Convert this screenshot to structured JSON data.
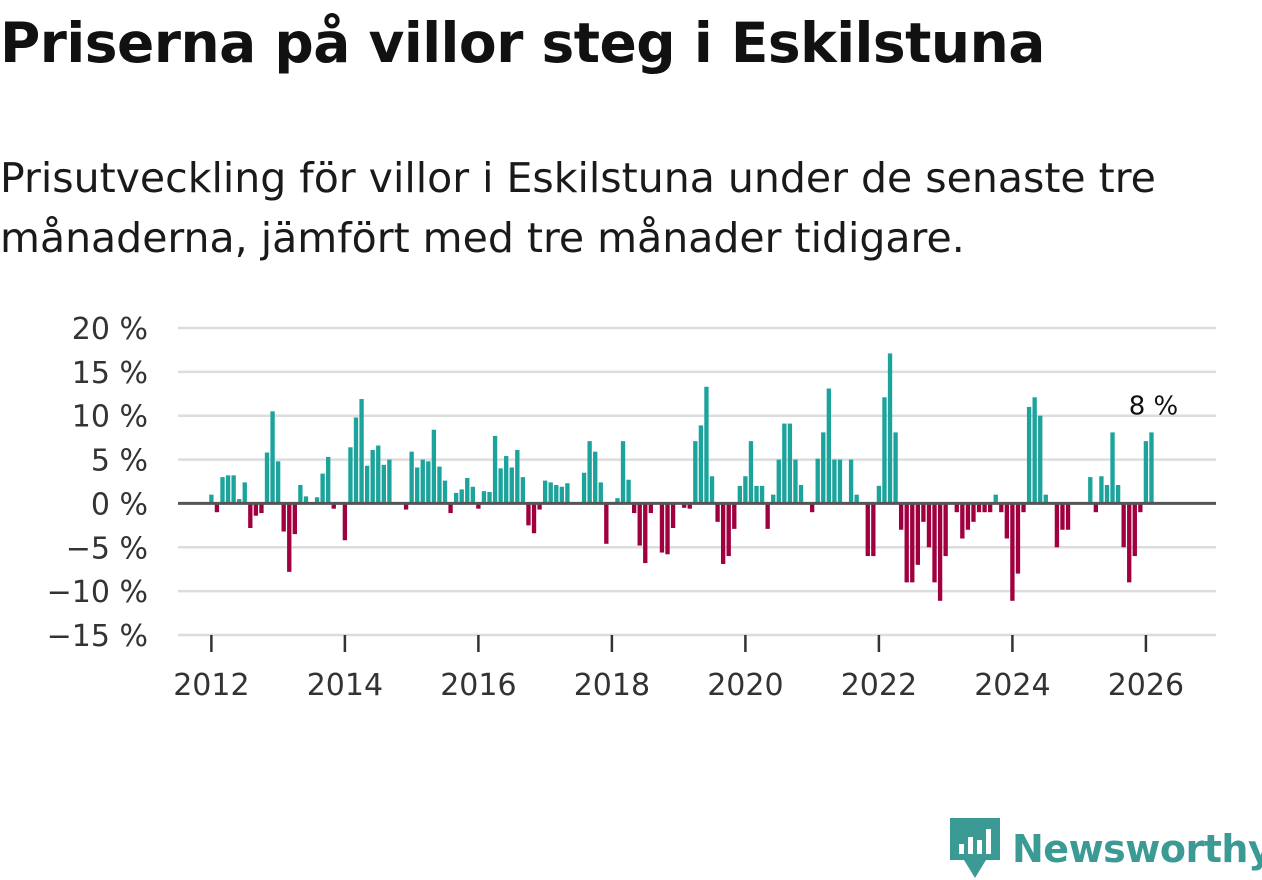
{
  "title": "Priserna på villor steg i Eskilstuna",
  "subtitle": "Prisutveckling för villor i Eskilstuna under de senaste tre månaderna, jämfört med tre månader tidigare.",
  "brand": {
    "name": "Newsworthy",
    "icon": "newsworthy-logo-icon",
    "color": "#3b9a94"
  },
  "colors": {
    "positive": "#1ba39c",
    "negative": "#a0003f",
    "grid": "#dddddd",
    "zero_line": "#555555"
  },
  "chart_data": {
    "type": "bar",
    "title": "Priserna på villor steg i Eskilstuna",
    "xlabel": "",
    "ylabel": "",
    "ylim": [
      -15,
      20
    ],
    "xlim": [
      2011.5,
      2027.05
    ],
    "yticks": [
      20,
      15,
      10,
      5,
      0,
      -5,
      -10,
      -15
    ],
    "ytick_labels": [
      "20 %",
      "15 %",
      "10 %",
      "5 %",
      "0 %",
      "−5 %",
      "−10 %",
      "−15 %"
    ],
    "xticks": [
      2012,
      2014,
      2016,
      2018,
      2020,
      2022,
      2024,
      2026
    ],
    "xtick_labels": [
      "2012",
      "2014",
      "2016",
      "2018",
      "2020",
      "2022",
      "2024",
      "2026"
    ],
    "start": {
      "year": 2012,
      "month": 1
    },
    "last_label": "8 %",
    "values": [
      1,
      -1,
      3,
      3.2,
      3.2,
      0.5,
      2.4,
      -2.8,
      -1.4,
      -1.1,
      5.8,
      10.5,
      4.8,
      -3.2,
      -7.8,
      -3.5,
      2.1,
      0.8,
      0,
      0.7,
      3.4,
      5.3,
      -0.6,
      0,
      -4.2,
      6.4,
      9.8,
      11.9,
      4.3,
      6.1,
      6.6,
      4.4,
      5,
      0,
      0,
      -0.7,
      5.9,
      4.1,
      5,
      4.8,
      8.4,
      4.2,
      2.6,
      -1.1,
      1.2,
      1.6,
      2.9,
      1.9,
      -0.6,
      1.4,
      1.3,
      7.7,
      4,
      5.4,
      4.1,
      6.1,
      3,
      -2.5,
      -3.4,
      -0.7,
      2.6,
      2.4,
      2.1,
      1.9,
      2.3,
      0,
      0,
      3.5,
      7.1,
      5.9,
      2.4,
      -4.6,
      0,
      0.6,
      7.1,
      2.7,
      -1.1,
      -4.8,
      -6.8,
      -1.1,
      0,
      -5.6,
      -5.8,
      -2.8,
      0,
      -0.5,
      -0.6,
      7.1,
      8.9,
      13.3,
      3.1,
      -2.1,
      -6.9,
      -6,
      -2.9,
      2,
      3.1,
      7.1,
      2,
      2,
      -2.9,
      1,
      5,
      9.1,
      9.1,
      5,
      2.1,
      0,
      -1,
      5.1,
      8.1,
      13.1,
      5,
      5,
      0,
      5,
      1,
      0,
      -6,
      -6,
      2,
      12.1,
      17.1,
      8.1,
      -3,
      -9,
      -9,
      -7,
      -2.1,
      -5,
      -9,
      -11.1,
      -6,
      0,
      -1,
      -4,
      -3,
      -2.1,
      -1,
      -1,
      -1,
      1,
      -1,
      -4,
      -11.1,
      -8,
      -1,
      11,
      12.1,
      10,
      1,
      0,
      -5,
      -3,
      -3,
      0,
      0,
      0,
      3,
      -1,
      3.1,
      2.1,
      8.1,
      2.1,
      -5,
      -9,
      -6,
      -1,
      7.1,
      8.1
    ]
  }
}
